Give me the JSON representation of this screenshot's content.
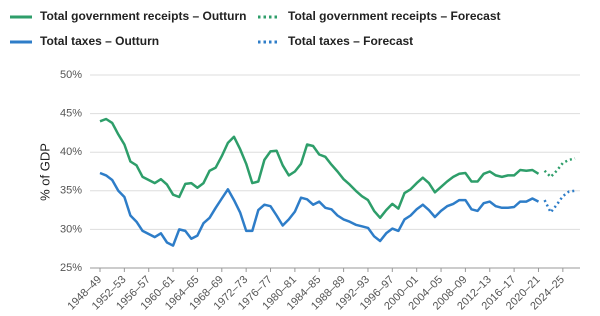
{
  "chart_data": {
    "type": "line",
    "y_label": "% of GDP",
    "categories": [
      "1948–49",
      null,
      null,
      null,
      "1952–53",
      null,
      null,
      null,
      "1956–57",
      null,
      null,
      null,
      "1960–61",
      null,
      null,
      null,
      "1964–65",
      null,
      null,
      null,
      "1968–69",
      null,
      null,
      null,
      "1972–73",
      null,
      null,
      null,
      "1976–77",
      null,
      null,
      null,
      "1980–81",
      null,
      null,
      null,
      "1984–85",
      null,
      null,
      null,
      "1988–89",
      null,
      null,
      null,
      "1992–93",
      null,
      null,
      null,
      "1996–97",
      null,
      null,
      null,
      "2000–01",
      null,
      null,
      null,
      "2004–05",
      null,
      null,
      null,
      "2008–09",
      null,
      null,
      null,
      "2012–13",
      null,
      null,
      null,
      "2016–17",
      null,
      null,
      null,
      "2020–21",
      null,
      null,
      null,
      "2024–25",
      null,
      null
    ],
    "series": [
      {
        "name": "Total government receipts – Outturn",
        "color": "#2e9e6a",
        "style": "solid",
        "values": [
          44.0,
          44.3,
          43.8,
          42.3,
          41.0,
          38.8,
          38.3,
          36.8,
          36.4,
          36.0,
          36.5,
          35.8,
          34.5,
          34.2,
          35.9,
          36.0,
          35.4,
          36.0,
          37.6,
          38.0,
          39.5,
          41.2,
          42.0,
          40.4,
          38.5,
          36.0,
          36.2,
          39.0,
          40.1,
          40.2,
          38.3,
          37.0,
          37.5,
          38.5,
          41.0,
          40.8,
          39.7,
          39.4,
          38.4,
          37.5,
          36.5,
          35.8,
          35.0,
          34.3,
          33.8,
          32.4,
          31.5,
          32.5,
          33.3,
          32.7,
          34.7,
          35.2,
          36.0,
          36.7,
          36.0,
          34.8,
          35.5,
          36.2,
          36.8,
          37.2,
          37.3,
          36.2,
          36.2,
          37.2,
          37.5,
          37.0,
          36.8,
          37.0,
          37.0,
          37.7,
          37.6,
          37.7,
          37.2,
          null,
          null,
          null,
          null,
          null,
          null
        ]
      },
      {
        "name": "Total government receipts – Forecast",
        "color": "#2e9e6a",
        "style": "dotted",
        "values": [
          null,
          null,
          null,
          null,
          null,
          null,
          null,
          null,
          null,
          null,
          null,
          null,
          null,
          null,
          null,
          null,
          null,
          null,
          null,
          null,
          null,
          null,
          null,
          null,
          null,
          null,
          null,
          null,
          null,
          null,
          null,
          null,
          null,
          null,
          null,
          null,
          null,
          null,
          null,
          null,
          null,
          null,
          null,
          null,
          null,
          null,
          null,
          null,
          null,
          null,
          null,
          null,
          null,
          null,
          null,
          null,
          null,
          null,
          null,
          null,
          null,
          null,
          null,
          null,
          null,
          null,
          null,
          null,
          null,
          null,
          null,
          null,
          null,
          37.6,
          36.8,
          37.6,
          38.6,
          39.0,
          39.2
        ]
      },
      {
        "name": "Total taxes – Outturn",
        "color": "#2e7dc8",
        "style": "solid",
        "values": [
          37.3,
          37.0,
          36.4,
          35.0,
          34.2,
          31.8,
          31.0,
          29.8,
          29.4,
          29.0,
          29.5,
          28.3,
          27.9,
          30.0,
          29.8,
          28.8,
          29.2,
          30.8,
          31.5,
          32.8,
          34.0,
          35.2,
          33.8,
          32.2,
          29.8,
          29.8,
          32.5,
          33.2,
          33.0,
          31.8,
          30.5,
          31.3,
          32.3,
          34.1,
          33.9,
          33.2,
          33.6,
          32.8,
          32.6,
          31.8,
          31.3,
          31.0,
          30.6,
          30.4,
          30.2,
          29.1,
          28.5,
          29.5,
          30.1,
          29.8,
          31.3,
          31.8,
          32.6,
          33.2,
          32.5,
          31.6,
          32.4,
          33.0,
          33.3,
          33.8,
          33.8,
          32.6,
          32.4,
          33.4,
          33.6,
          33.0,
          32.8,
          32.8,
          32.9,
          33.6,
          33.6,
          34.0,
          33.6,
          null,
          null,
          null,
          null,
          null,
          null
        ]
      },
      {
        "name": "Total taxes – Forecast",
        "color": "#2e7dc8",
        "style": "dotted",
        "values": [
          null,
          null,
          null,
          null,
          null,
          null,
          null,
          null,
          null,
          null,
          null,
          null,
          null,
          null,
          null,
          null,
          null,
          null,
          null,
          null,
          null,
          null,
          null,
          null,
          null,
          null,
          null,
          null,
          null,
          null,
          null,
          null,
          null,
          null,
          null,
          null,
          null,
          null,
          null,
          null,
          null,
          null,
          null,
          null,
          null,
          null,
          null,
          null,
          null,
          null,
          null,
          null,
          null,
          null,
          null,
          null,
          null,
          null,
          null,
          null,
          null,
          null,
          null,
          null,
          null,
          null,
          null,
          null,
          null,
          null,
          null,
          null,
          null,
          33.8,
          32.2,
          33.2,
          34.3,
          34.9,
          35.0
        ]
      }
    ],
    "ylim": [
      25,
      50
    ],
    "yticks": [
      {
        "value": 25,
        "label": "25%"
      },
      {
        "value": 30,
        "label": "30%"
      },
      {
        "value": 35,
        "label": "35%"
      },
      {
        "value": 40,
        "label": "40%"
      },
      {
        "value": 45,
        "label": "45%"
      },
      {
        "value": 50,
        "label": "50%"
      }
    ],
    "grid": true
  }
}
